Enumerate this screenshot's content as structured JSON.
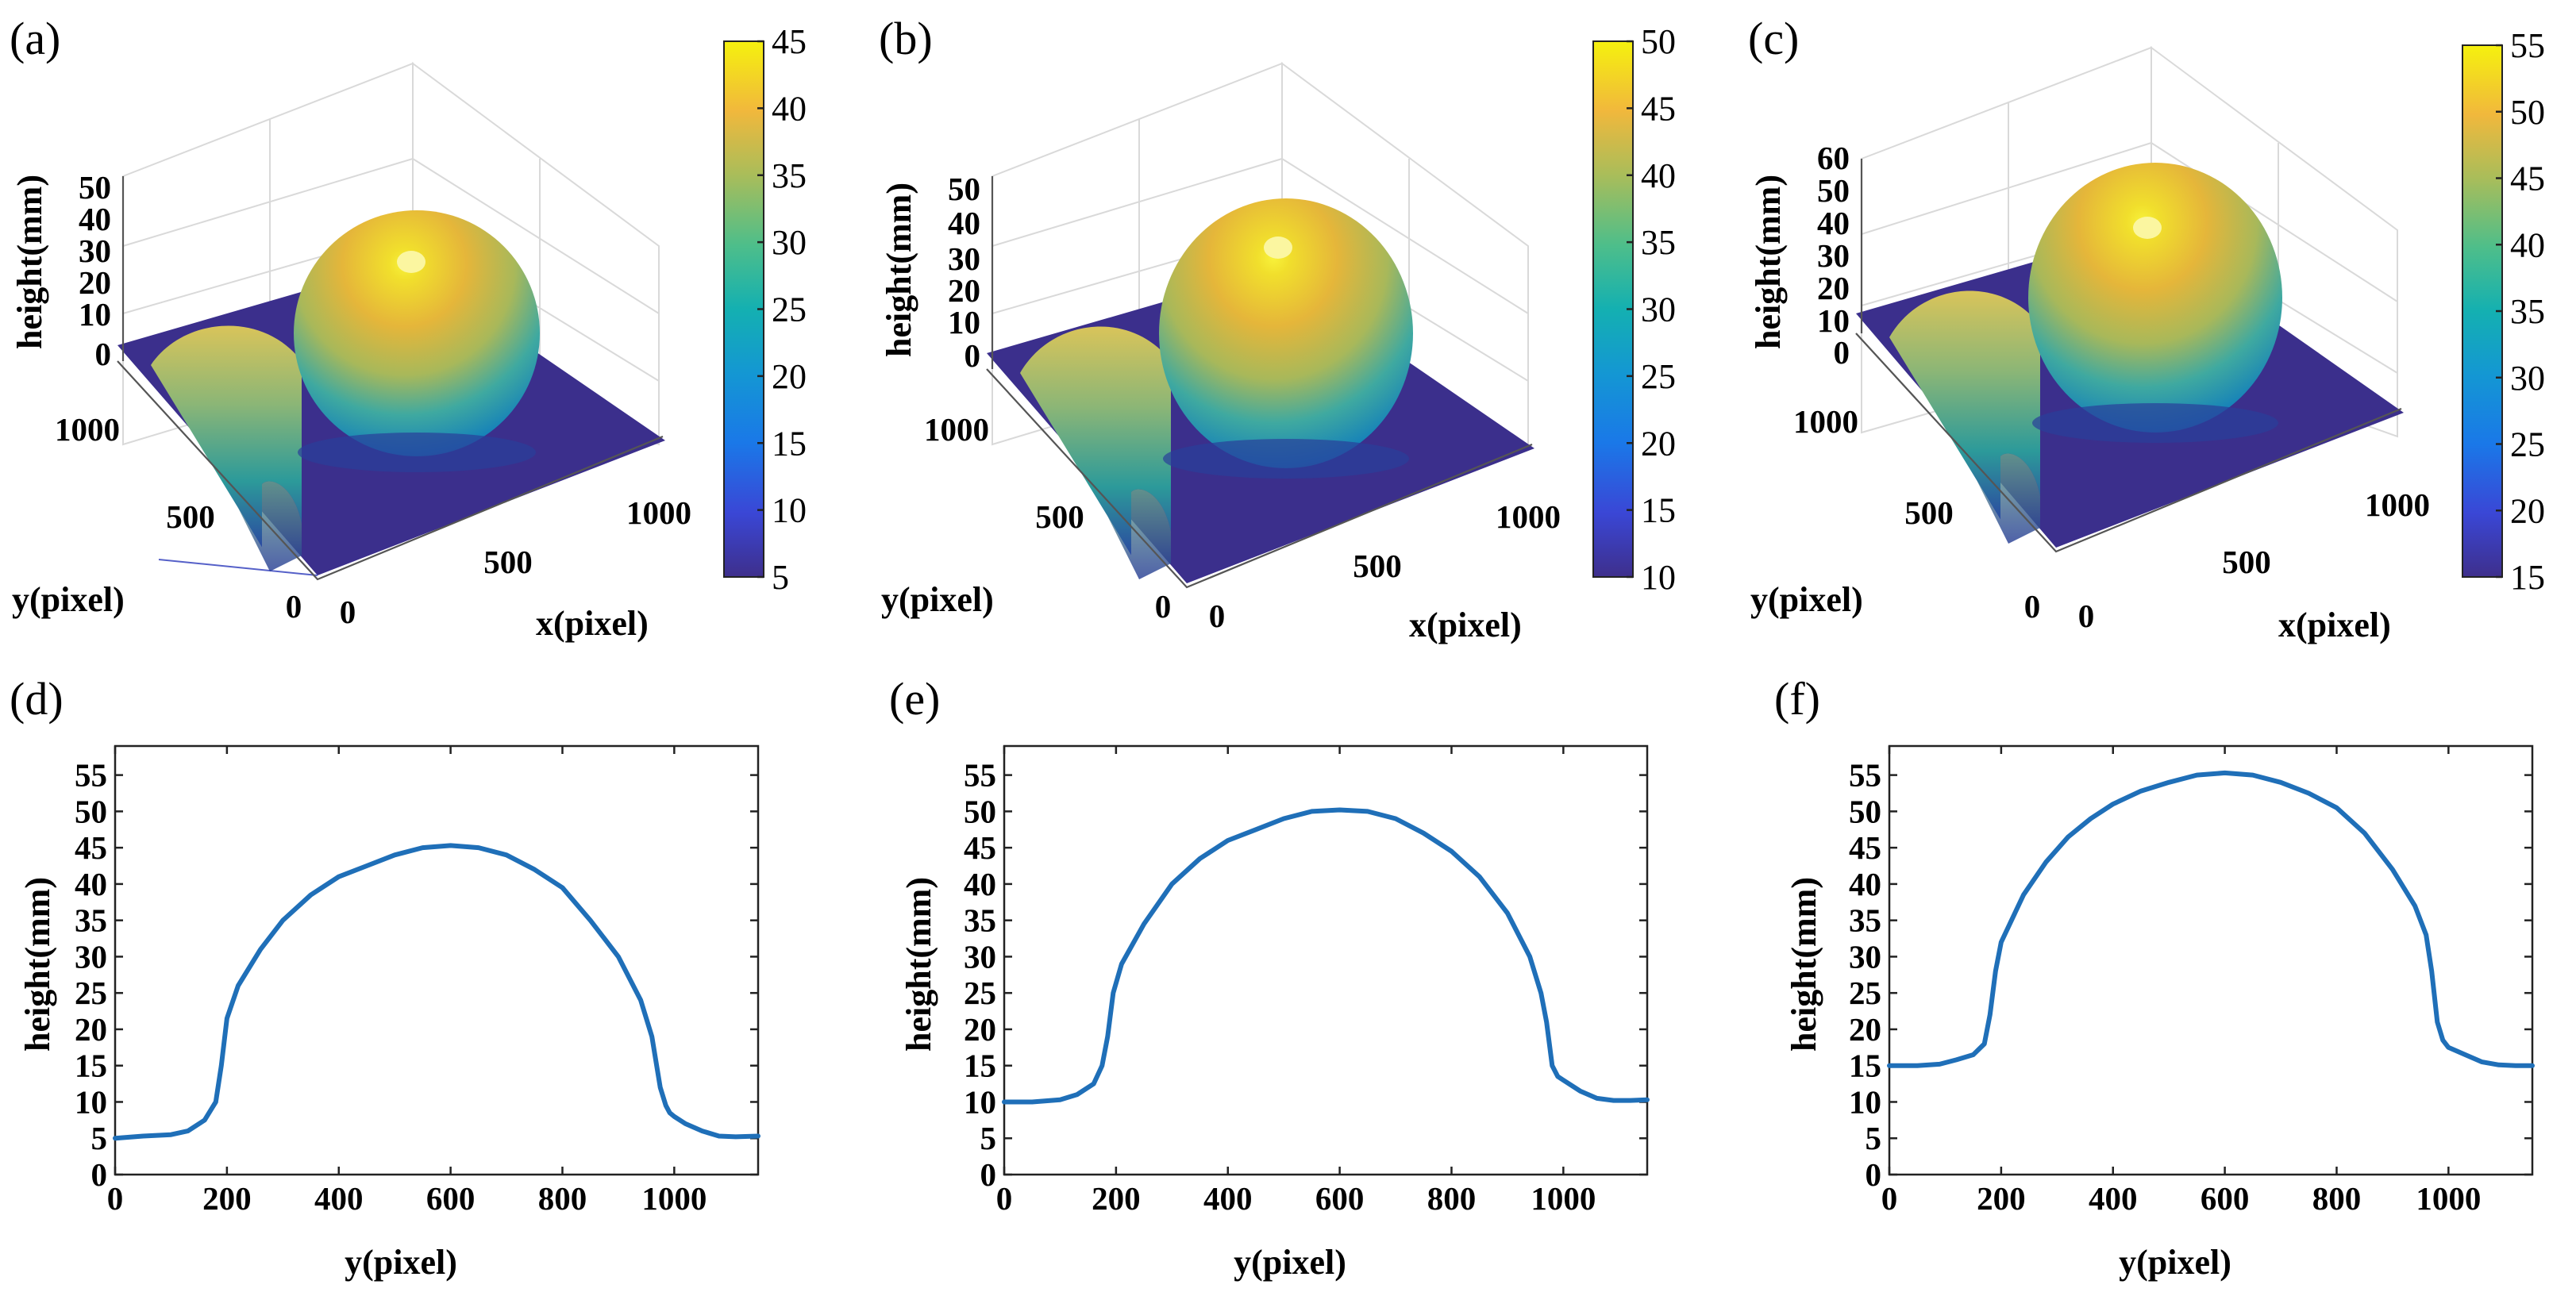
{
  "chart_data": [
    {
      "panel": "(a)",
      "type": "surface3d",
      "xlabel": "x(pixel)",
      "ylabel": "y(pixel)",
      "zlabel": "height(mm)",
      "x_ticks": [
        "0",
        "500",
        "1000"
      ],
      "y_ticks": [
        "0",
        "500",
        "1000"
      ],
      "z_ticks": [
        "0",
        "10",
        "20",
        "30",
        "40",
        "50"
      ],
      "zlim": [
        0,
        55
      ],
      "dome_peak": 45,
      "base_height": 5,
      "colorbar": {
        "range": [
          5,
          45
        ],
        "ticks": [
          "5",
          "10",
          "15",
          "20",
          "25",
          "30",
          "35",
          "40",
          "45"
        ]
      }
    },
    {
      "panel": "(b)",
      "type": "surface3d",
      "xlabel": "x(pixel)",
      "ylabel": "y(pixel)",
      "zlabel": "height(mm)",
      "x_ticks": [
        "0",
        "500",
        "1000"
      ],
      "y_ticks": [
        "0",
        "500",
        "1000"
      ],
      "z_ticks": [
        "0",
        "10",
        "20",
        "30",
        "40",
        "50"
      ],
      "zlim": [
        0,
        55
      ],
      "dome_peak": 50,
      "base_height": 10,
      "colorbar": {
        "range": [
          10,
          50
        ],
        "ticks": [
          "10",
          "15",
          "20",
          "25",
          "30",
          "35",
          "40",
          "45",
          "50"
        ]
      }
    },
    {
      "panel": "(c)",
      "type": "surface3d",
      "xlabel": "x(pixel)",
      "ylabel": "y(pixel)",
      "zlabel": "height(mm)",
      "x_ticks": [
        "0",
        "500",
        "1000"
      ],
      "y_ticks": [
        "0",
        "500",
        "1000"
      ],
      "z_ticks": [
        "0",
        "10",
        "20",
        "30",
        "40",
        "50",
        "60"
      ],
      "zlim": [
        0,
        60
      ],
      "dome_peak": 55,
      "base_height": 15,
      "colorbar": {
        "range": [
          15,
          55
        ],
        "ticks": [
          "15",
          "20",
          "25",
          "30",
          "35",
          "40",
          "45",
          "50",
          "55"
        ]
      }
    },
    {
      "panel": "(d)",
      "type": "line",
      "xlabel": "y(pixel)",
      "ylabel": "height(mm)",
      "xlim": [
        0,
        1150
      ],
      "ylim": [
        0,
        59
      ],
      "x_ticks": [
        0,
        200,
        400,
        600,
        800,
        1000
      ],
      "y_ticks": [
        0,
        5,
        10,
        15,
        20,
        25,
        30,
        35,
        40,
        45,
        50,
        55
      ],
      "x": [
        0,
        50,
        100,
        130,
        160,
        180,
        190,
        200,
        220,
        260,
        300,
        350,
        400,
        450,
        500,
        550,
        600,
        650,
        700,
        750,
        800,
        850,
        900,
        940,
        960,
        975,
        985,
        992,
        1000,
        1020,
        1050,
        1080,
        1110,
        1150
      ],
      "y": [
        5,
        5.3,
        5.5,
        6,
        7.5,
        10,
        15,
        21.5,
        26,
        31,
        35,
        38.5,
        41,
        42.5,
        44,
        45,
        45.3,
        45,
        44,
        42,
        39.5,
        35,
        30,
        24,
        19,
        12,
        9.5,
        8.5,
        8,
        7,
        6,
        5.3,
        5.2,
        5.3
      ]
    },
    {
      "panel": "(e)",
      "type": "line",
      "xlabel": "y(pixel)",
      "ylabel": "height(mm)",
      "xlim": [
        0,
        1150
      ],
      "ylim": [
        0,
        59
      ],
      "x_ticks": [
        0,
        200,
        400,
        600,
        800,
        1000
      ],
      "y_ticks": [
        0,
        5,
        10,
        15,
        20,
        25,
        30,
        35,
        40,
        45,
        50,
        55
      ],
      "x": [
        0,
        50,
        100,
        130,
        160,
        175,
        185,
        195,
        210,
        250,
        300,
        350,
        400,
        450,
        500,
        550,
        600,
        650,
        700,
        750,
        800,
        850,
        900,
        940,
        960,
        970,
        980,
        990,
        1000,
        1030,
        1060,
        1090,
        1120,
        1150
      ],
      "y": [
        10,
        10,
        10.3,
        11,
        12.5,
        15,
        19,
        25,
        29,
        34.5,
        40,
        43.5,
        46,
        47.5,
        49,
        50,
        50.2,
        50,
        49,
        47,
        44.5,
        41,
        36,
        30,
        25,
        21,
        15,
        13.5,
        13,
        11.5,
        10.5,
        10.2,
        10.2,
        10.3
      ]
    },
    {
      "panel": "(f)",
      "type": "line",
      "xlabel": "y(pixel)",
      "ylabel": "height(mm)",
      "xlim": [
        0,
        1150
      ],
      "ylim": [
        0,
        59
      ],
      "x_ticks": [
        0,
        200,
        400,
        600,
        800,
        1000
      ],
      "y_ticks": [
        0,
        5,
        10,
        15,
        20,
        25,
        30,
        35,
        40,
        45,
        50,
        55
      ],
      "x": [
        0,
        50,
        90,
        120,
        150,
        170,
        180,
        190,
        200,
        240,
        280,
        320,
        360,
        400,
        450,
        500,
        550,
        600,
        650,
        700,
        750,
        800,
        850,
        900,
        940,
        960,
        970,
        980,
        990,
        1000,
        1030,
        1060,
        1090,
        1120,
        1150
      ],
      "y": [
        15,
        15,
        15.2,
        15.8,
        16.5,
        18,
        22,
        28,
        32,
        38.5,
        43,
        46.5,
        49,
        51,
        52.8,
        54,
        55,
        55.3,
        55,
        54,
        52.5,
        50.5,
        47,
        42,
        37,
        33,
        28,
        21,
        18.5,
        17.5,
        16.5,
        15.5,
        15.1,
        15,
        15
      ]
    }
  ]
}
